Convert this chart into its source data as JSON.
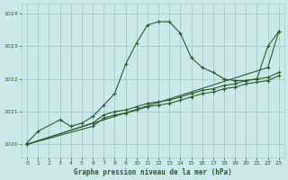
{
  "title": "Graphe pression niveau de la mer (hPa)",
  "bg_color": "#cce8e8",
  "grid_color": "#aacccc",
  "line_color": "#2d5a2d",
  "xlim": [
    -0.5,
    23.5
  ],
  "ylim": [
    1019.6,
    1024.3
  ],
  "yticks": [
    1020,
    1021,
    1022,
    1023,
    1024
  ],
  "xticks": [
    0,
    1,
    2,
    3,
    4,
    5,
    6,
    7,
    8,
    9,
    10,
    11,
    12,
    13,
    14,
    15,
    16,
    17,
    18,
    19,
    20,
    21,
    22,
    23
  ],
  "series": [
    {
      "x": [
        0,
        1,
        3,
        4,
        5,
        6,
        7,
        8,
        9,
        10,
        11,
        12,
        13,
        14,
        15,
        16,
        17,
        18,
        19,
        20,
        21,
        22,
        23
      ],
      "y": [
        1020.05,
        1020.4,
        1020.75,
        1020.55,
        1020.65,
        1020.85,
        1021.2,
        1021.55,
        1022.45,
        1023.1,
        1023.65,
        1023.75,
        1023.75,
        1023.4,
        1022.65,
        1022.35,
        1022.2,
        1022.0,
        1021.95,
        1021.95,
        1022.0,
        1023.0,
        1023.45
      ]
    },
    {
      "x": [
        0,
        22,
        23
      ],
      "y": [
        1020.0,
        1022.35,
        1023.45
      ]
    },
    {
      "x": [
        0,
        6,
        7,
        8,
        9,
        10,
        11,
        12,
        13,
        14,
        15,
        16,
        17,
        18,
        19,
        20,
        21,
        22,
        23
      ],
      "y": [
        1020.0,
        1020.65,
        1020.9,
        1021.0,
        1021.05,
        1021.15,
        1021.25,
        1021.3,
        1021.35,
        1021.45,
        1021.55,
        1021.65,
        1021.7,
        1021.8,
        1021.85,
        1021.95,
        1022.0,
        1022.05,
        1022.2
      ]
    },
    {
      "x": [
        0,
        6,
        7,
        8,
        9,
        10,
        11,
        12,
        13,
        14,
        15,
        16,
        17,
        18,
        19,
        20,
        21,
        22,
        23
      ],
      "y": [
        1020.0,
        1020.55,
        1020.8,
        1020.9,
        1020.95,
        1021.05,
        1021.15,
        1021.2,
        1021.25,
        1021.35,
        1021.45,
        1021.55,
        1021.6,
        1021.7,
        1021.75,
        1021.85,
        1021.9,
        1021.95,
        1022.1
      ]
    }
  ]
}
